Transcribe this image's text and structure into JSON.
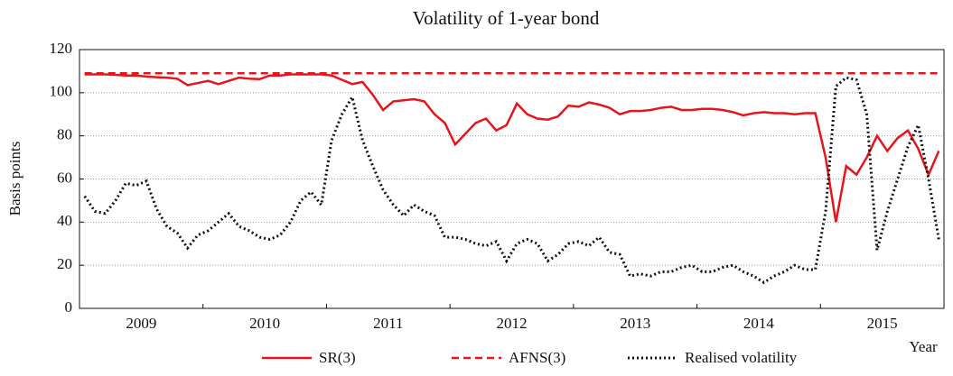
{
  "chart_data": {
    "type": "line",
    "title": "Volatility of 1-year bond",
    "y_label": "Basis points",
    "x_label": "Year",
    "categories": [
      null,
      null,
      null,
      null,
      null,
      null,
      "2009",
      null,
      null,
      null,
      null,
      null,
      null,
      null,
      null,
      null,
      null,
      null,
      "2010",
      null,
      null,
      null,
      null,
      null,
      null,
      null,
      null,
      null,
      null,
      null,
      "2011",
      null,
      null,
      null,
      null,
      null,
      null,
      null,
      null,
      null,
      null,
      null,
      "2012",
      null,
      null,
      null,
      null,
      null,
      null,
      null,
      null,
      null,
      null,
      null,
      "2013",
      null,
      null,
      null,
      null,
      null,
      null,
      null,
      null,
      null,
      null,
      null,
      "2014",
      null,
      null,
      null,
      null,
      null,
      null,
      null,
      null,
      null,
      null,
      null,
      "2015",
      null,
      null,
      null,
      null,
      null
    ],
    "series": [
      {
        "name": "SR(3)",
        "color": "#e8141b",
        "dash": "solid",
        "values": [
          108.5,
          108.5,
          108.5,
          108.3,
          108,
          108,
          107.5,
          107.2,
          107,
          106.5,
          103.5,
          104.5,
          105.5,
          104,
          105.5,
          107,
          106.5,
          106.3,
          108,
          108,
          108.5,
          108.5,
          108.5,
          108.5,
          108,
          106,
          104,
          105,
          99,
          92,
          96,
          96.5,
          97,
          96,
          90,
          86,
          76,
          81,
          86,
          88,
          82.5,
          85,
          95,
          90,
          88,
          87.5,
          89,
          94,
          93.5,
          95.5,
          94.5,
          93,
          90,
          91.5,
          91.5,
          92,
          93,
          93.5,
          92,
          92,
          92.5,
          92.5,
          92,
          91,
          89.5,
          90.5,
          91,
          90.5,
          90.5,
          90,
          90.5,
          90.5,
          70,
          40,
          66,
          62,
          70,
          80,
          73,
          79,
          82.5,
          74,
          62,
          73
        ]
      },
      {
        "name": "AFNS(3)",
        "color": "#e8141b",
        "dash": "dashed",
        "values": [
          109,
          109,
          109,
          109,
          109,
          109,
          109,
          109,
          109,
          109,
          109,
          109,
          109,
          109,
          109,
          109,
          109,
          109,
          109,
          109,
          109,
          109,
          109,
          109,
          109,
          109,
          109,
          109,
          109,
          109,
          109,
          109,
          109,
          109,
          109,
          109,
          109,
          109,
          109,
          109,
          109,
          109,
          109,
          109,
          109,
          109,
          109,
          109,
          109,
          109,
          109,
          109,
          109,
          109,
          109,
          109,
          109,
          109,
          109,
          109,
          109,
          109,
          109,
          109,
          109,
          109,
          109,
          109,
          109,
          109,
          109,
          109,
          109,
          109,
          109,
          109,
          109,
          109,
          109,
          109,
          109,
          109,
          109,
          109
        ]
      },
      {
        "name": "Realised volatility",
        "color": "#111111",
        "dash": "dotted",
        "values": [
          52,
          45,
          44,
          50,
          58,
          57,
          59,
          46,
          38,
          35,
          28,
          34,
          36,
          40,
          44,
          38,
          36,
          33,
          32,
          34,
          40,
          50,
          54,
          48,
          78,
          90,
          98,
          78,
          66,
          55,
          48,
          43,
          48,
          45,
          43,
          33,
          33,
          32,
          30,
          29,
          31,
          22,
          30,
          32,
          30,
          22,
          25,
          30,
          31,
          29,
          33,
          26,
          25,
          15,
          16,
          15,
          17,
          17,
          19,
          20,
          17,
          17,
          19,
          20,
          17,
          15,
          12,
          15,
          17,
          20,
          18,
          18,
          45,
          103,
          107,
          106,
          90,
          27,
          45,
          60,
          75,
          85,
          60,
          32
        ]
      }
    ],
    "ylim": [
      0,
      120
    ],
    "yticks": [
      0,
      20,
      40,
      60,
      80,
      100,
      120
    ],
    "grid": true
  }
}
